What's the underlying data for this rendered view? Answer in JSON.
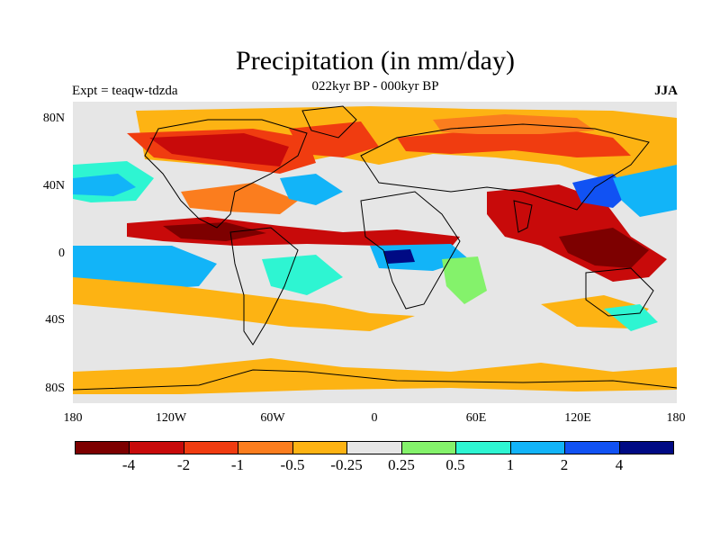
{
  "title": "Precipitation (in mm/day)",
  "subtitle_left": "Expt = teaqw-tdzda",
  "subtitle_center": "022kyr BP - 000kyr BP",
  "subtitle_right": "JJA",
  "lat_labels": [
    "80N",
    "40N",
    "0",
    "40S",
    "80S"
  ],
  "lon_labels": [
    "180",
    "120W",
    "60W",
    "0",
    "60E",
    "120E",
    "180"
  ],
  "colorbar": {
    "colors": [
      "#7d0000",
      "#c80a0a",
      "#f03c10",
      "#fb7d1e",
      "#fdb313",
      "#e6e6e6",
      "#84f26b",
      "#2ef5d2",
      "#12b4f8",
      "#1152f3",
      "#000a84"
    ],
    "labels": [
      "-4",
      "-2",
      "-1",
      "-0.5",
      "-0.25",
      "0.25",
      "0.5",
      "1",
      "2",
      "4"
    ]
  },
  "map_colors": {
    "ocean_background": "#e6e6e6",
    "coastline": "#000000"
  }
}
